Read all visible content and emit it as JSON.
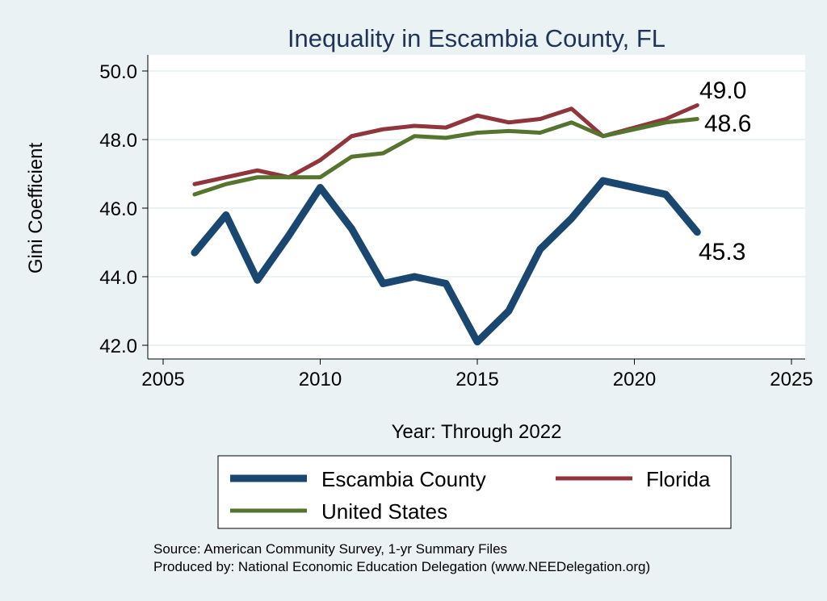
{
  "chart_data": {
    "type": "line",
    "title": "Inequality in Escambia County, FL",
    "xlabel": "Year: Through 2022",
    "ylabel": "Gini Coefficient",
    "xlim": [
      2005,
      2025
    ],
    "ylim": [
      42,
      50
    ],
    "xticks": [
      "2005",
      "2010",
      "2015",
      "2020",
      "2025"
    ],
    "yticks": [
      "42.0",
      "44.0",
      "46.0",
      "48.0",
      "50.0"
    ],
    "grid": true,
    "legend_position": "bottom",
    "series": [
      {
        "name": "Escambia County",
        "color": "#1a476f",
        "x": [
          2006,
          2007,
          2008,
          2009,
          2010,
          2011,
          2012,
          2013,
          2014,
          2015,
          2016,
          2017,
          2018,
          2019,
          2021,
          2022
        ],
        "values": [
          44.7,
          45.8,
          43.9,
          45.2,
          46.6,
          45.4,
          43.8,
          44.0,
          43.8,
          42.1,
          43.0,
          44.8,
          45.7,
          46.8,
          46.4,
          45.3
        ],
        "end_label": "45.3"
      },
      {
        "name": "Florida",
        "color": "#90353b",
        "x": [
          2006,
          2007,
          2008,
          2009,
          2010,
          2011,
          2012,
          2013,
          2014,
          2015,
          2016,
          2017,
          2018,
          2019,
          2021,
          2022
        ],
        "values": [
          46.7,
          46.9,
          47.1,
          46.9,
          47.4,
          48.1,
          48.3,
          48.4,
          48.35,
          48.7,
          48.5,
          48.6,
          48.9,
          48.1,
          48.6,
          49.0
        ],
        "end_label": "49.0"
      },
      {
        "name": "United States",
        "color": "#55752f",
        "x": [
          2006,
          2007,
          2008,
          2009,
          2010,
          2011,
          2012,
          2013,
          2014,
          2015,
          2016,
          2017,
          2018,
          2019,
          2021,
          2022
        ],
        "values": [
          46.4,
          46.7,
          46.9,
          46.9,
          46.9,
          47.5,
          47.6,
          48.1,
          48.05,
          48.2,
          48.25,
          48.2,
          48.5,
          48.1,
          48.5,
          48.6
        ],
        "end_label": "48.6"
      }
    ]
  },
  "notes": {
    "source": "Source: American Community Survey, 1-yr Summary Files",
    "produced": "Produced by: National Economic Education Delegation (www.NEEDelegation.org)"
  }
}
